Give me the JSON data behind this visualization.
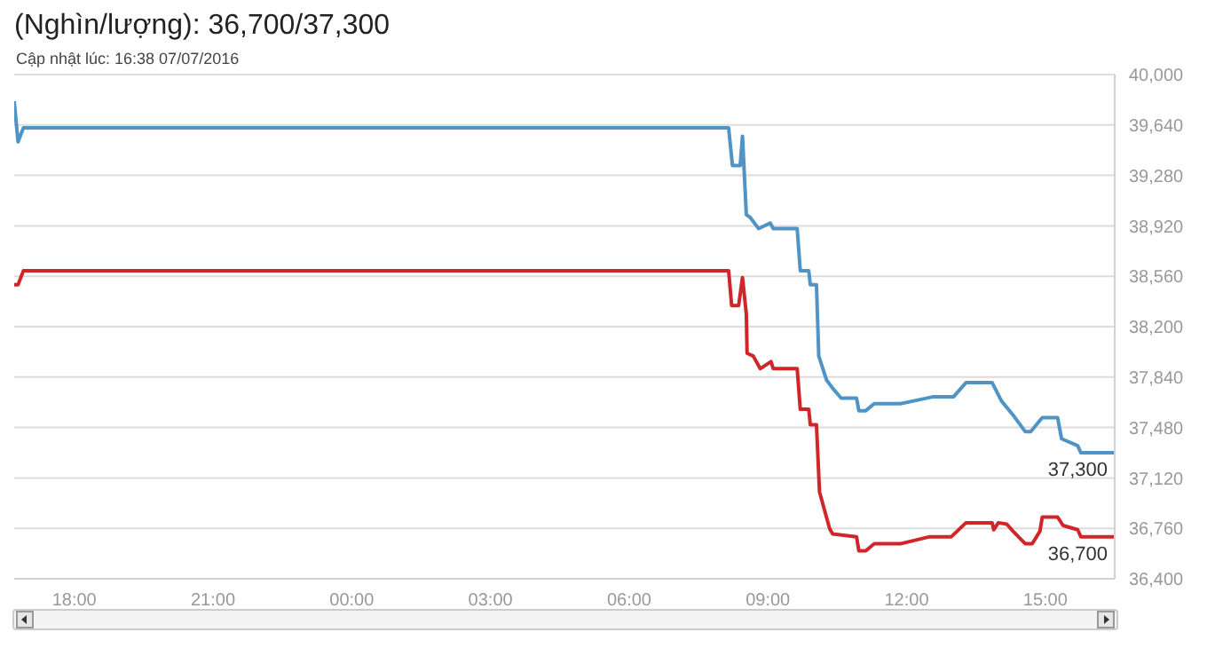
{
  "chart_data": {
    "type": "line",
    "title": "(Nghìn/lượng): 36,700/37,300",
    "subtitle": "Cập nhật lúc: 16:38 07/07/2016",
    "xlim": [
      "2016-07-06T16:42",
      "2016-07-07T16:30"
    ],
    "xticks": [
      {
        "value": "2016-07-06T18:00",
        "label": "18:00"
      },
      {
        "value": "2016-07-06T21:00",
        "label": "21:00"
      },
      {
        "value": "2016-07-07T00:00",
        "label": "00:00"
      },
      {
        "value": "2016-07-07T03:00",
        "label": "03:00"
      },
      {
        "value": "2016-07-07T06:00",
        "label": "06:00"
      },
      {
        "value": "2016-07-07T09:00",
        "label": "09:00"
      },
      {
        "value": "2016-07-07T12:00",
        "label": "12:00"
      },
      {
        "value": "2016-07-07T15:00",
        "label": "15:00"
      }
    ],
    "ylim": [
      36400,
      40000
    ],
    "yticks": [
      {
        "value": 36400,
        "label": "36,400"
      },
      {
        "value": 36760,
        "label": "36,760"
      },
      {
        "value": 37120,
        "label": "37,120"
      },
      {
        "value": 37480,
        "label": "37,480"
      },
      {
        "value": 37840,
        "label": "37,840"
      },
      {
        "value": 38200,
        "label": "38,200"
      },
      {
        "value": 38560,
        "label": "38,560"
      },
      {
        "value": 38920,
        "label": "38,920"
      },
      {
        "value": 39280,
        "label": "39,280"
      },
      {
        "value": 39640,
        "label": "39,640"
      },
      {
        "value": 40000,
        "label": "40,000"
      }
    ],
    "grid": "y",
    "marker": "none",
    "line_style": "solid",
    "series": [
      {
        "color": "#4f94c4",
        "x": [
          "2016-07-06T16:42",
          "2016-07-06T16:47",
          "2016-07-06T16:54",
          "2016-07-07T08:09",
          "2016-07-07T08:14",
          "2016-07-07T08:24",
          "2016-07-07T08:27",
          "2016-07-07T08:32",
          "2016-07-07T08:37",
          "2016-07-07T08:48",
          "2016-07-07T09:03",
          "2016-07-07T09:07",
          "2016-07-07T09:38",
          "2016-07-07T09:42",
          "2016-07-07T09:53",
          "2016-07-07T09:55",
          "2016-07-07T10:03",
          "2016-07-07T10:06",
          "2016-07-07T10:16",
          "2016-07-07T10:24",
          "2016-07-07T10:35",
          "2016-07-07T10:55",
          "2016-07-07T10:58",
          "2016-07-07T11:07",
          "2016-07-07T11:18",
          "2016-07-07T11:52",
          "2016-07-07T12:35",
          "2016-07-07T13:01",
          "2016-07-07T13:17",
          "2016-07-07T13:51",
          "2016-07-07T14:03",
          "2016-07-07T14:18",
          "2016-07-07T14:34",
          "2016-07-07T14:41",
          "2016-07-07T14:56",
          "2016-07-07T15:16",
          "2016-07-07T15:21",
          "2016-07-07T15:42",
          "2016-07-07T15:46",
          "2016-07-07T16:30"
        ],
        "values": [
          39810,
          39520,
          39620,
          39620,
          39350,
          39350,
          39560,
          39000,
          38980,
          38900,
          38940,
          38900,
          38900,
          38600,
          38600,
          38500,
          38500,
          37990,
          37820,
          37760,
          37690,
          37690,
          37600,
          37600,
          37650,
          37650,
          37700,
          37700,
          37800,
          37800,
          37670,
          37570,
          37450,
          37450,
          37550,
          37550,
          37400,
          37350,
          37300,
          37300
        ]
      },
      {
        "color": "#d0262a",
        "x": [
          "2016-07-06T16:42",
          "2016-07-06T16:47",
          "2016-07-06T16:54",
          "2016-07-07T08:09",
          "2016-07-07T08:13",
          "2016-07-07T08:22",
          "2016-07-07T08:27",
          "2016-07-07T08:32",
          "2016-07-07T08:33",
          "2016-07-07T08:41",
          "2016-07-07T08:50",
          "2016-07-07T09:04",
          "2016-07-07T09:07",
          "2016-07-07T09:38",
          "2016-07-07T09:42",
          "2016-07-07T09:53",
          "2016-07-07T09:55",
          "2016-07-07T10:03",
          "2016-07-07T10:07",
          "2016-07-07T10:20",
          "2016-07-07T10:24",
          "2016-07-07T10:55",
          "2016-07-07T10:58",
          "2016-07-07T11:07",
          "2016-07-07T11:18",
          "2016-07-07T11:52",
          "2016-07-07T12:30",
          "2016-07-07T12:58",
          "2016-07-07T13:17",
          "2016-07-07T13:51",
          "2016-07-07T13:53",
          "2016-07-07T13:59",
          "2016-07-07T14:10",
          "2016-07-07T14:18",
          "2016-07-07T14:34",
          "2016-07-07T14:43",
          "2016-07-07T14:53",
          "2016-07-07T14:56",
          "2016-07-07T15:16",
          "2016-07-07T15:23",
          "2016-07-07T15:42",
          "2016-07-07T15:46",
          "2016-07-07T16:30"
        ],
        "values": [
          38500,
          38500,
          38600,
          38600,
          38350,
          38350,
          38550,
          38290,
          38010,
          37990,
          37900,
          37950,
          37900,
          37900,
          37610,
          37610,
          37500,
          37500,
          37020,
          36760,
          36720,
          36700,
          36600,
          36600,
          36650,
          36650,
          36700,
          36700,
          36800,
          36800,
          36750,
          36800,
          36790,
          36740,
          36650,
          36650,
          36740,
          36840,
          36840,
          36780,
          36750,
          36700,
          36700
        ]
      }
    ],
    "annotations": [
      {
        "text": "37,300",
        "x": "2016-07-07T16:30",
        "y": 37300
      },
      {
        "text": "36,700",
        "x": "2016-07-07T16:30",
        "y": 36700
      }
    ]
  }
}
